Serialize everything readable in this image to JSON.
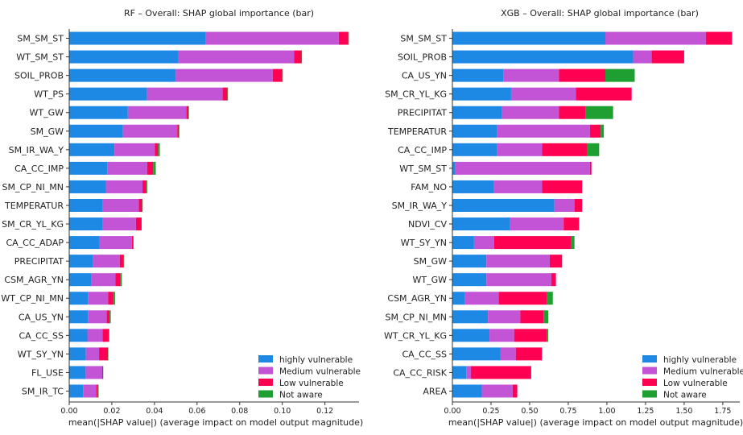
{
  "colors": {
    "highly vulnerable": "#1E88E5",
    "Medium vulnerable": "#C454D6",
    "Low vulnerable": "#FF0052",
    "Not aware": "#1F9E31"
  },
  "chart_data": [
    {
      "type": "bar",
      "orientation": "horizontal",
      "stacked": true,
      "title": "RF – Overall: SHAP global importance (bar)",
      "xlabel": "mean(|SHAP value|) (average impact on model output magnitude)",
      "ylabel": "",
      "xlim": [
        0,
        0.136
      ],
      "xticks": [
        "0.00",
        "0.02",
        "0.04",
        "0.06",
        "0.08",
        "0.10",
        "0.12"
      ],
      "xtick_values": [
        0,
        0.02,
        0.04,
        0.06,
        0.08,
        0.1,
        0.12
      ],
      "legend_position": "lower-right",
      "legend": [
        "highly vulnerable",
        "Medium vulnerable",
        "Low vulnerable",
        "Not aware"
      ],
      "categories": [
        "SM_SM_ST",
        "WT_SM_ST",
        "SOIL_PROB",
        "WT_PS",
        "WT_GW",
        "SM_GW",
        "SM_IR_WA_Y",
        "CA_CC_IMP",
        "SM_CP_NI_MN",
        "TEMPERATUR",
        "SM_CR_YL_KG",
        "CA_CC_ADAP",
        "PRECIPITAT",
        "CSM_AGR_YN",
        "WT_CP_NI_MN",
        "CA_US_YN",
        "CA_CC_SS",
        "WT_SY_YN",
        "FL_USE",
        "SM_IR_TC"
      ],
      "series": [
        {
          "name": "highly vulnerable",
          "values": [
            0.064,
            0.051,
            0.05,
            0.0365,
            0.0275,
            0.0252,
            0.0212,
            0.0178,
            0.0172,
            0.0155,
            0.0158,
            0.0142,
            0.0112,
            0.0105,
            0.0088,
            0.0088,
            0.0085,
            0.0078,
            0.0077,
            0.0065
          ]
        },
        {
          "name": "Medium vulnerable",
          "values": [
            0.0625,
            0.0545,
            0.0455,
            0.0355,
            0.0275,
            0.0255,
            0.019,
            0.0188,
            0.0172,
            0.0172,
            0.0155,
            0.0152,
            0.0125,
            0.0112,
            0.0095,
            0.0088,
            0.0072,
            0.0062,
            0.0078,
            0.0062
          ]
        },
        {
          "name": "Low vulnerable",
          "values": [
            0.0045,
            0.0035,
            0.0045,
            0.0022,
            0.001,
            0.0008,
            0.0015,
            0.0028,
            0.0018,
            0.0015,
            0.0025,
            0.0006,
            0.0016,
            0.0024,
            0.0024,
            0.0014,
            0.0029,
            0.0042,
            0.0004,
            0.0008
          ]
        },
        {
          "name": "Not aware",
          "values": [
            0.0002,
            0.0002,
            0.0002,
            0.0003,
            0.0002,
            0.0002,
            0.0008,
            0.0012,
            0.0004,
            0.0002,
            0.0002,
            0.0002,
            0.0005,
            0.0006,
            0.0008,
            0.0005,
            0.0002,
            0.0002,
            0.0001,
            0.0003
          ]
        }
      ]
    },
    {
      "type": "bar",
      "orientation": "horizontal",
      "stacked": true,
      "title": "XGB – Overall: SHAP global importance (bar)",
      "xlabel": "mean(|SHAP value|) (average impact on model output magnitude)",
      "ylabel": "",
      "xlim": [
        0,
        1.86
      ],
      "xticks": [
        "0.00",
        "0.25",
        "0.50",
        "0.75",
        "1.00",
        "1.25",
        "1.50",
        "1.75"
      ],
      "xtick_values": [
        0,
        0.25,
        0.5,
        0.75,
        1.0,
        1.25,
        1.5,
        1.75
      ],
      "legend_position": "lower-right",
      "legend": [
        "highly vulnerable",
        "Medium vulnerable",
        "Low vulnerable",
        "Not aware"
      ],
      "categories": [
        "SM_SM_ST",
        "SOIL_PROB",
        "CA_US_YN",
        "SM_CR_YL_KG",
        "PRECIPITAT",
        "TEMPERATUR",
        "CA_CC_IMP",
        "WT_SM_ST",
        "FAM_NO",
        "SM_IR_WA_Y",
        "NDVI_CV",
        "WT_SY_YN",
        "SM_GW",
        "WT_GW",
        "CSM_AGR_YN",
        "SM_CP_NI_MN",
        "WT_CR_YL_KG",
        "CA_CC_SS",
        "CA_CC_RISK",
        "AREA"
      ],
      "series": [
        {
          "name": "highly vulnerable",
          "values": [
            0.99,
            1.17,
            0.33,
            0.38,
            0.32,
            0.29,
            0.29,
            0.02,
            0.27,
            0.66,
            0.37,
            0.14,
            0.22,
            0.22,
            0.08,
            0.23,
            0.24,
            0.31,
            0.09,
            0.19
          ]
        },
        {
          "name": "Medium vulnerable",
          "values": [
            0.65,
            0.12,
            0.36,
            0.42,
            0.37,
            0.6,
            0.29,
            0.87,
            0.31,
            0.13,
            0.35,
            0.13,
            0.41,
            0.42,
            0.22,
            0.21,
            0.16,
            0.1,
            0.03,
            0.2
          ]
        },
        {
          "name": "Low vulnerable",
          "values": [
            0.17,
            0.21,
            0.3,
            0.36,
            0.17,
            0.07,
            0.29,
            0.01,
            0.26,
            0.05,
            0.1,
            0.5,
            0.08,
            0.03,
            0.31,
            0.15,
            0.21,
            0.17,
            0.39,
            0.03
          ]
        },
        {
          "name": "Not aware",
          "values": [
            0.0,
            0.0,
            0.19,
            0.0,
            0.18,
            0.02,
            0.08,
            0.0,
            0.0,
            0.0,
            0.0,
            0.02,
            0.0,
            0.0,
            0.04,
            0.03,
            0.01,
            0.0,
            0.0,
            0.0
          ]
        }
      ]
    }
  ]
}
